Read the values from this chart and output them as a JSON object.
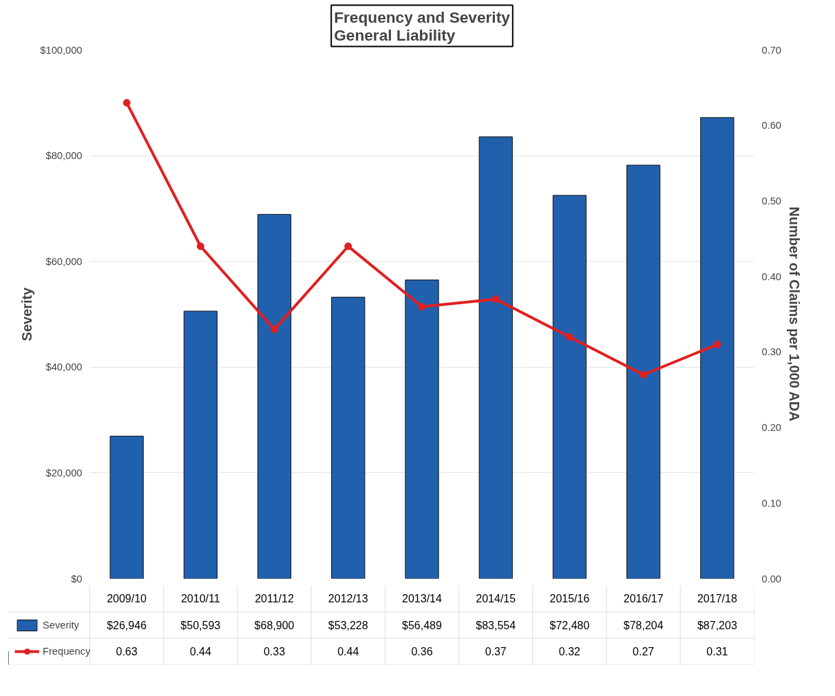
{
  "chart_data": {
    "type": "bar",
    "title": "Frequency and Severity\nGeneral Liability",
    "ylabel": "Severity",
    "y2label": "Number of Claims per 1,000 ADA",
    "categories": [
      "2009/10",
      "2010/11",
      "2011/12",
      "2012/13",
      "2013/14",
      "2014/15",
      "2015/16",
      "2016/17",
      "2017/18"
    ],
    "series": [
      {
        "name": "Severity",
        "color": "#2160ad",
        "values": [
          26946,
          50593,
          68900,
          53228,
          56489,
          83554,
          72480,
          78204,
          87203
        ],
        "value_labels": [
          "$26,946",
          "$50,593",
          "$68,900",
          "$53,228",
          "$56,489",
          "$83,554",
          "$72,480",
          "$78,204",
          "$87,203"
        ]
      },
      {
        "name": "Frequency",
        "type": "line",
        "axis": "y2",
        "color": "#e02020",
        "values": [
          0.63,
          0.44,
          0.33,
          0.44,
          0.36,
          0.37,
          0.32,
          0.27,
          0.31
        ],
        "value_labels": [
          "0.63",
          "0.44",
          "0.33",
          "0.44",
          "0.36",
          "0.37",
          "0.32",
          "0.27",
          "0.31"
        ]
      }
    ],
    "ylim": [
      0,
      100000
    ],
    "yticks": [
      {
        "value": 0,
        "label": "$0"
      },
      {
        "value": 20000,
        "label": "$20,000"
      },
      {
        "value": 40000,
        "label": "$40,000"
      },
      {
        "value": 60000,
        "label": "$60,000"
      },
      {
        "value": 80000,
        "label": "$80,000"
      },
      {
        "value": 100000,
        "label": "$100,000"
      }
    ],
    "y2lim": [
      0,
      0.7
    ],
    "y2ticks": [
      {
        "value": 0,
        "label": "0.00"
      },
      {
        "value": 0.1,
        "label": "0.10"
      },
      {
        "value": 0.2,
        "label": "0.20"
      },
      {
        "value": 0.3,
        "label": "0.30"
      },
      {
        "value": 0.4,
        "label": "0.40"
      },
      {
        "value": 0.5,
        "label": "0.50"
      },
      {
        "value": 0.6,
        "label": "0.60"
      },
      {
        "value": 0.7,
        "label": "0.70"
      }
    ],
    "marker": "circle",
    "grid": "y",
    "legend": "bottom left"
  }
}
